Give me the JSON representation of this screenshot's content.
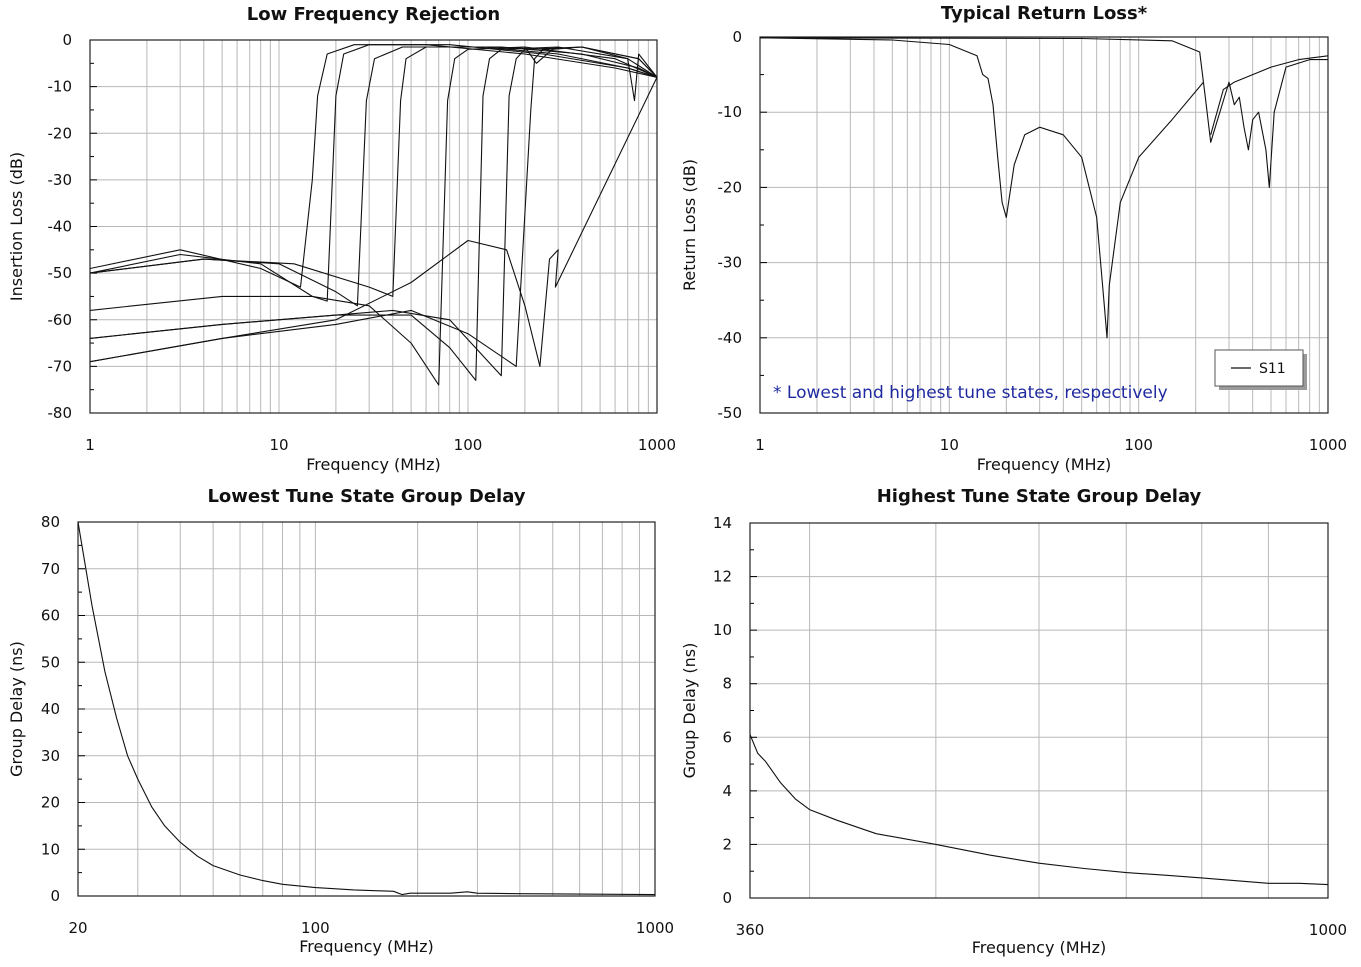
{
  "chart_data": [
    {
      "type": "line",
      "title": "Low Frequency Rejection",
      "xlabel": "Frequency (MHz)",
      "ylabel": "Insertion Loss (dB)",
      "xscale": "log",
      "xlim": [
        1,
        1000
      ],
      "ylim": [
        -80,
        0
      ],
      "xticks": [
        1,
        10,
        100,
        1000
      ],
      "xtick_labels": [
        "1",
        "10",
        "100",
        "1000"
      ],
      "yticks": [
        0,
        -10,
        -20,
        -30,
        -40,
        -50,
        -60,
        -70,
        -80
      ],
      "ytick_labels": [
        "0",
        "-10",
        "-20",
        "-30",
        "-40",
        "-50",
        "-60",
        "-70",
        "-80"
      ],
      "grid": true,
      "series": [
        {
          "x": [
            1,
            3,
            8,
            13,
            15,
            16,
            18,
            25,
            60,
            200,
            600,
            1000
          ],
          "y": [
            -49,
            -45,
            -49,
            -53,
            -30,
            -12,
            -3,
            -1,
            -1,
            -3,
            -6,
            -8
          ]
        },
        {
          "x": [
            1,
            3,
            8,
            15,
            18,
            20,
            22,
            30,
            80,
            250,
            700,
            1000
          ],
          "y": [
            -50,
            -46,
            -48,
            -55,
            -56,
            -12,
            -3,
            -1,
            -1,
            -3,
            -6,
            -8
          ]
        },
        {
          "x": [
            1,
            4,
            10,
            20,
            26,
            29,
            32,
            45,
            120,
            300,
            700,
            1000
          ],
          "y": [
            -50,
            -47,
            -48,
            -54,
            -57,
            -13,
            -4,
            -1.5,
            -1.5,
            -3,
            -6,
            -8
          ]
        },
        {
          "x": [
            1,
            4,
            12,
            30,
            40,
            44,
            47,
            60,
            150,
            400,
            800,
            1000
          ],
          "y": [
            -50,
            -47,
            -48,
            -53,
            -55,
            -13,
            -4,
            -1.5,
            -1.5,
            -3,
            -6,
            -8
          ]
        },
        {
          "x": [
            1,
            5,
            15,
            30,
            50,
            70,
            78,
            85,
            100,
            200,
            600,
            1000
          ],
          "y": [
            -58,
            -55,
            -55,
            -57,
            -65,
            -74,
            -13,
            -4,
            -2,
            -1.5,
            -4,
            -8
          ]
        },
        {
          "x": [
            1,
            5,
            20,
            50,
            80,
            110,
            120,
            130,
            150,
            300,
            700,
            1000
          ],
          "y": [
            -64,
            -61,
            -59,
            -59,
            -66,
            -73,
            -12,
            -4,
            -2,
            -1.5,
            -4,
            -8
          ]
        },
        {
          "x": [
            1,
            5,
            20,
            40,
            80,
            150,
            165,
            180,
            200,
            400,
            800,
            1000
          ],
          "y": [
            -64,
            -61,
            -59,
            -58,
            -60,
            -72,
            -12,
            -4,
            -2,
            -1.5,
            -4,
            -8
          ]
        },
        {
          "x": [
            1,
            5,
            20,
            50,
            100,
            180,
            215,
            225,
            250,
            400,
            800,
            1000
          ],
          "y": [
            -69,
            -64,
            -61,
            -58,
            -63,
            -70,
            -15,
            -4,
            -2,
            -1.5,
            -4,
            -8
          ]
        },
        {
          "x": [
            1,
            5,
            20,
            50,
            100,
            160,
            200,
            240,
            270,
            300,
            290,
            1000
          ],
          "y": [
            -69,
            -64,
            -60,
            -52,
            -43,
            -45,
            -57,
            -70,
            -47,
            -45,
            -53,
            -8
          ]
        },
        {
          "x": [
            150,
            200,
            230,
            280,
            400,
            700,
            760,
            800,
            1000
          ],
          "y": [
            -2,
            -1.5,
            -5,
            -2,
            -1.5,
            -4,
            -13,
            -3,
            -8
          ]
        }
      ]
    },
    {
      "type": "line",
      "title": "Typical Return Loss*",
      "xlabel": "Frequency (MHz)",
      "ylabel": "Return Loss (dB)",
      "xscale": "log",
      "xlim": [
        1,
        1000
      ],
      "ylim": [
        -50,
        0
      ],
      "xticks": [
        1,
        10,
        100,
        1000
      ],
      "xtick_labels": [
        "1",
        "10",
        "100",
        "1000"
      ],
      "yticks": [
        0,
        -10,
        -20,
        -30,
        -40,
        -50
      ],
      "ytick_labels": [
        "0",
        "-10",
        "-20",
        "-30",
        "-40",
        "-50"
      ],
      "grid": true,
      "legend": {
        "entries": [
          "S11"
        ],
        "position": "bottom-right"
      },
      "annotation": "* Lowest and highest tune states, respectively",
      "annotation_color": "#1f2aa0",
      "series": [
        {
          "name": "S11",
          "x": [
            1,
            5,
            10,
            14,
            15,
            16,
            17,
            18,
            19,
            20,
            22,
            25,
            30,
            40,
            50,
            60,
            66,
            68,
            70,
            80,
            100,
            150,
            220
          ],
          "y": [
            -0.1,
            -0.4,
            -1,
            -2.5,
            -5,
            -5.5,
            -9,
            -16,
            -22,
            -24,
            -17,
            -13,
            -12,
            -13,
            -16,
            -24,
            -36,
            -40,
            -33,
            -22,
            -16,
            -11,
            -6
          ]
        },
        {
          "name": "S11",
          "x": [
            1,
            50,
            150,
            210,
            225,
            240,
            300,
            320,
            340,
            360,
            380,
            400,
            430,
            470,
            490,
            520,
            600,
            800,
            1000
          ],
          "y": [
            -0.1,
            -0.2,
            -0.5,
            -2,
            -8,
            -14,
            -6,
            -9,
            -8,
            -12,
            -15,
            -11,
            -10,
            -15,
            -20,
            -10,
            -4,
            -3,
            -3
          ]
        },
        {
          "name": "S11",
          "x": [
            240,
            280,
            320,
            400,
            500,
            700,
            1000
          ],
          "y": [
            -13,
            -7,
            -6,
            -5,
            -4,
            -3,
            -2.5
          ]
        }
      ]
    },
    {
      "type": "line",
      "title": "Lowest Tune State Group Delay",
      "xlabel": "Frequency (MHz)",
      "ylabel": "Group Delay (ns)",
      "xscale": "log",
      "xlim": [
        20,
        1000
      ],
      "ylim": [
        0,
        80
      ],
      "xticks": [
        20,
        100,
        1000
      ],
      "xtick_labels": [
        "20",
        "100",
        "1000"
      ],
      "yticks": [
        0,
        10,
        20,
        30,
        40,
        50,
        60,
        70,
        80
      ],
      "ytick_labels": [
        "0",
        "10",
        "20",
        "30",
        "40",
        "50",
        "60",
        "70",
        "80"
      ],
      "grid": true,
      "series": [
        {
          "x": [
            20,
            22,
            24,
            26,
            28,
            30,
            33,
            36,
            40,
            45,
            50,
            60,
            70,
            80,
            100,
            130,
            170,
            180,
            190,
            250,
            280,
            300,
            400,
            600,
            1000
          ],
          "y": [
            80,
            62,
            48,
            38,
            30,
            25,
            19,
            15,
            11.5,
            8.5,
            6.5,
            4.5,
            3.3,
            2.5,
            1.8,
            1.3,
            1.0,
            0.3,
            0.6,
            0.6,
            0.9,
            0.6,
            0.5,
            0.4,
            0.3
          ]
        }
      ]
    },
    {
      "type": "line",
      "title": "Highest Tune State Group Delay",
      "xlabel": "Frequency (MHz)",
      "ylabel": "Group Delay (ns)",
      "xscale": "log",
      "xlim": [
        360,
        1000
      ],
      "ylim": [
        0,
        14
      ],
      "xticks": [
        360,
        1000
      ],
      "xtick_labels": [
        "360",
        "1000"
      ],
      "yticks": [
        0,
        2,
        4,
        6,
        8,
        10,
        12,
        14
      ],
      "ytick_labels": [
        "0",
        "2",
        "4",
        "6",
        "8",
        "10",
        "12",
        "14"
      ],
      "grid": true,
      "series": [
        {
          "x": [
            360,
            365,
            370,
            380,
            390,
            400,
            420,
            450,
            500,
            550,
            600,
            650,
            700,
            750,
            800,
            900,
            950,
            1000
          ],
          "y": [
            6.1,
            5.4,
            5.1,
            4.3,
            3.7,
            3.3,
            2.9,
            2.4,
            2.0,
            1.6,
            1.3,
            1.1,
            0.95,
            0.85,
            0.75,
            0.55,
            0.55,
            0.5
          ]
        }
      ]
    }
  ]
}
